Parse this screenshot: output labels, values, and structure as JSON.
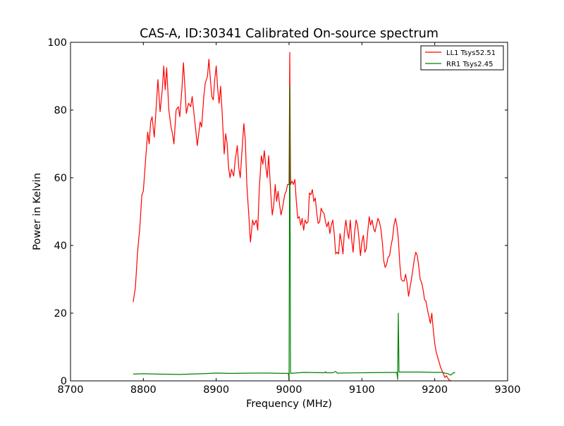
{
  "chart_data": {
    "type": "line",
    "title": "CAS-A, ID:30341 Calibrated On-source spectrum",
    "xlabel": "Frequency (MHz)",
    "ylabel": "Power in Kelvin",
    "xlim": [
      8700,
      9300
    ],
    "ylim": [
      0,
      100
    ],
    "xticks": [
      8700,
      8800,
      8900,
      9000,
      9100,
      9200,
      9300
    ],
    "yticks": [
      0,
      20,
      40,
      60,
      80,
      100
    ],
    "grid": false,
    "legend_position": "top-right",
    "series": [
      {
        "name": "LL1 Tsys52.51",
        "color": "#ff0000",
        "points": [
          [
            8786,
            23.3
          ],
          [
            8789,
            27.5
          ],
          [
            8792,
            38
          ],
          [
            8795,
            45
          ],
          [
            8798,
            55
          ],
          [
            8800,
            56
          ],
          [
            8803,
            65
          ],
          [
            8806,
            73.5
          ],
          [
            8808,
            70
          ],
          [
            8810,
            76.5
          ],
          [
            8812,
            78
          ],
          [
            8815,
            72
          ],
          [
            8818,
            82
          ],
          [
            8820,
            89
          ],
          [
            8823,
            79.5
          ],
          [
            8826,
            86
          ],
          [
            8828,
            93
          ],
          [
            8830,
            86
          ],
          [
            8832,
            92.5
          ],
          [
            8835,
            80
          ],
          [
            8838,
            75
          ],
          [
            8840,
            73
          ],
          [
            8842,
            70
          ],
          [
            8845,
            80
          ],
          [
            8848,
            81
          ],
          [
            8850,
            78
          ],
          [
            8853,
            86.5
          ],
          [
            8855,
            94
          ],
          [
            8857,
            87
          ],
          [
            8859,
            79
          ],
          [
            8862,
            82
          ],
          [
            8865,
            81
          ],
          [
            8867,
            84
          ],
          [
            8869,
            80
          ],
          [
            8872,
            74
          ],
          [
            8874,
            69.5
          ],
          [
            8876,
            73
          ],
          [
            8878,
            76.5
          ],
          [
            8880,
            75
          ],
          [
            8883,
            84
          ],
          [
            8885,
            88
          ],
          [
            8888,
            90
          ],
          [
            8890,
            95
          ],
          [
            8892,
            89
          ],
          [
            8894,
            84
          ],
          [
            8896,
            83
          ],
          [
            8898,
            89
          ],
          [
            8900,
            93
          ],
          [
            8902,
            86.5
          ],
          [
            8904,
            82
          ],
          [
            8906,
            87
          ],
          [
            8908,
            80
          ],
          [
            8911,
            67
          ],
          [
            8913,
            73
          ],
          [
            8915,
            70
          ],
          [
            8917,
            63
          ],
          [
            8919,
            60
          ],
          [
            8921,
            62.5
          ],
          [
            8924,
            60.5
          ],
          [
            8926,
            65
          ],
          [
            8929,
            69.5
          ],
          [
            8931,
            63
          ],
          [
            8933,
            60
          ],
          [
            8936,
            70
          ],
          [
            8938,
            76
          ],
          [
            8940,
            71
          ],
          [
            8942,
            58
          ],
          [
            8945,
            48
          ],
          [
            8947,
            41
          ],
          [
            8950,
            47.5
          ],
          [
            8952,
            46
          ],
          [
            8955,
            47.5
          ],
          [
            8957,
            44.5
          ],
          [
            8959,
            56
          ],
          [
            8962,
            66.5
          ],
          [
            8964,
            64
          ],
          [
            8966,
            68
          ],
          [
            8968,
            63.5
          ],
          [
            8970,
            60
          ],
          [
            8972,
            66.5
          ],
          [
            8975,
            55
          ],
          [
            8977,
            49
          ],
          [
            8979,
            52
          ],
          [
            8981,
            58
          ],
          [
            8983,
            53
          ],
          [
            8985,
            56
          ],
          [
            8987,
            52
          ],
          [
            8989,
            49
          ],
          [
            8991,
            51
          ],
          [
            8994,
            55
          ],
          [
            8996,
            56
          ],
          [
            8998,
            58
          ],
          [
            9000,
            58
          ],
          [
            9001,
            97
          ],
          [
            9002,
            58
          ],
          [
            9004,
            59
          ],
          [
            9006,
            58
          ],
          [
            9008,
            59.5
          ],
          [
            9010,
            53
          ],
          [
            9012,
            48
          ],
          [
            9014,
            48.5
          ],
          [
            9016,
            46
          ],
          [
            9018,
            48
          ],
          [
            9020,
            44.5
          ],
          [
            9022,
            47.5
          ],
          [
            9024,
            46.5
          ],
          [
            9026,
            47
          ],
          [
            9028,
            55.5
          ],
          [
            9030,
            55
          ],
          [
            9032,
            56.5
          ],
          [
            9034,
            53
          ],
          [
            9036,
            54
          ],
          [
            9038,
            49.5
          ],
          [
            9040,
            46.5
          ],
          [
            9042,
            47
          ],
          [
            9044,
            51
          ],
          [
            9046,
            50
          ],
          [
            9048,
            49.5
          ],
          [
            9050,
            47
          ],
          [
            9052,
            45.5
          ],
          [
            9054,
            47
          ],
          [
            9056,
            43.5
          ],
          [
            9058,
            46
          ],
          [
            9060,
            47.5
          ],
          [
            9062,
            43.5
          ],
          [
            9064,
            37.5
          ],
          [
            9066,
            38
          ],
          [
            9068,
            37.5
          ],
          [
            9070,
            43.5
          ],
          [
            9072,
            41
          ],
          [
            9074,
            37.5
          ],
          [
            9076,
            44
          ],
          [
            9078,
            47.5
          ],
          [
            9080,
            44
          ],
          [
            9082,
            42
          ],
          [
            9084,
            47.5
          ],
          [
            9086,
            41.5
          ],
          [
            9088,
            38
          ],
          [
            9090,
            44
          ],
          [
            9092,
            47.5
          ],
          [
            9094,
            46
          ],
          [
            9096,
            42
          ],
          [
            9098,
            37
          ],
          [
            9100,
            41
          ],
          [
            9102,
            43
          ],
          [
            9104,
            38
          ],
          [
            9106,
            39
          ],
          [
            9108,
            44
          ],
          [
            9110,
            48.5
          ],
          [
            9112,
            46
          ],
          [
            9114,
            47.5
          ],
          [
            9116,
            45
          ],
          [
            9118,
            44
          ],
          [
            9120,
            46
          ],
          [
            9122,
            48
          ],
          [
            9124,
            47
          ],
          [
            9126,
            45
          ],
          [
            9128,
            41
          ],
          [
            9130,
            35.5
          ],
          [
            9132,
            33.5
          ],
          [
            9134,
            34.5
          ],
          [
            9136,
            36.5
          ],
          [
            9138,
            37
          ],
          [
            9140,
            40
          ],
          [
            9142,
            42
          ],
          [
            9144,
            46
          ],
          [
            9146,
            48
          ],
          [
            9148,
            46
          ],
          [
            9150,
            42
          ],
          [
            9152,
            34.5
          ],
          [
            9154,
            30
          ],
          [
            9156,
            29.5
          ],
          [
            9158,
            29.5
          ],
          [
            9160,
            31.5
          ],
          [
            9162,
            29
          ],
          [
            9164,
            25
          ],
          [
            9166,
            27.5
          ],
          [
            9168,
            30
          ],
          [
            9170,
            33
          ],
          [
            9172,
            36
          ],
          [
            9174,
            38
          ],
          [
            9176,
            37
          ],
          [
            9178,
            34
          ],
          [
            9180,
            30
          ],
          [
            9182,
            29
          ],
          [
            9184,
            27
          ],
          [
            9186,
            24
          ],
          [
            9188,
            23.5
          ],
          [
            9190,
            21
          ],
          [
            9192,
            19
          ],
          [
            9194,
            17
          ],
          [
            9196,
            20
          ],
          [
            9198,
            15
          ],
          [
            9200,
            11
          ],
          [
            9202,
            8.5
          ],
          [
            9204,
            7
          ],
          [
            9206,
            5.5
          ],
          [
            9208,
            4
          ],
          [
            9210,
            3
          ],
          [
            9212,
            2
          ],
          [
            9214,
            1
          ],
          [
            9216,
            1.5
          ],
          [
            9218,
            0.8
          ],
          [
            9220,
            0.2
          ],
          [
            9222,
            0
          ]
        ]
      },
      {
        "name": "RR1 Tsys2.45",
        "color": "#008000",
        "points": [
          [
            8786,
            2.0
          ],
          [
            8800,
            2.1
          ],
          [
            8820,
            2.0
          ],
          [
            8850,
            1.9
          ],
          [
            8880,
            2.1
          ],
          [
            8900,
            2.3
          ],
          [
            8920,
            2.2
          ],
          [
            8950,
            2.3
          ],
          [
            8975,
            2.3
          ],
          [
            8990,
            2.2
          ],
          [
            8999,
            2.2
          ],
          [
            9000,
            0.2
          ],
          [
            9001,
            87
          ],
          [
            9002,
            2.2
          ],
          [
            9020,
            2.5
          ],
          [
            9049,
            2.4
          ],
          [
            9050,
            2.7
          ],
          [
            9051,
            2.4
          ],
          [
            9060,
            2.4
          ],
          [
            9064,
            2.8
          ],
          [
            9066,
            2.3
          ],
          [
            9100,
            2.4
          ],
          [
            9148,
            2.5
          ],
          [
            9149,
            0.4
          ],
          [
            9150,
            20
          ],
          [
            9151,
            2.6
          ],
          [
            9180,
            2.6
          ],
          [
            9200,
            2.5
          ],
          [
            9210,
            2.5
          ],
          [
            9218,
            2.1
          ],
          [
            9222,
            1.7
          ],
          [
            9225,
            2.3
          ],
          [
            9228,
            2.5
          ]
        ]
      }
    ]
  }
}
